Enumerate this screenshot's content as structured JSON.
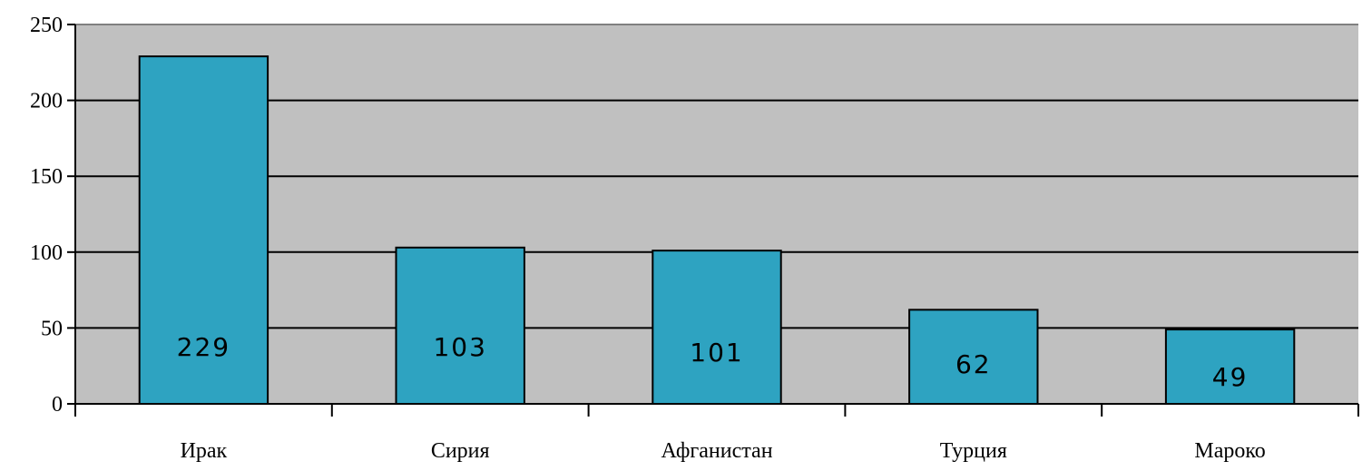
{
  "chart_data": {
    "type": "bar",
    "categories": [
      "Ирак",
      "Сирия",
      "Афганистан",
      "Турция",
      "Мароко"
    ],
    "values": [
      229,
      103,
      101,
      62,
      49
    ],
    "data_labels": [
      "229",
      "103",
      "101",
      "62",
      "49"
    ],
    "title": "",
    "xlabel": "",
    "ylabel": "",
    "ylim": [
      0,
      250
    ],
    "yticks": [
      0,
      50,
      100,
      150,
      200,
      250
    ],
    "ytick_labels": [
      "0",
      "50",
      "100",
      "150",
      "200",
      "250"
    ],
    "grid": true,
    "legend": "none",
    "colors": {
      "bar": "#2ea3c1",
      "plot_background": "#c0c0c0",
      "gridline": "#000000",
      "axis": "#000000"
    }
  }
}
